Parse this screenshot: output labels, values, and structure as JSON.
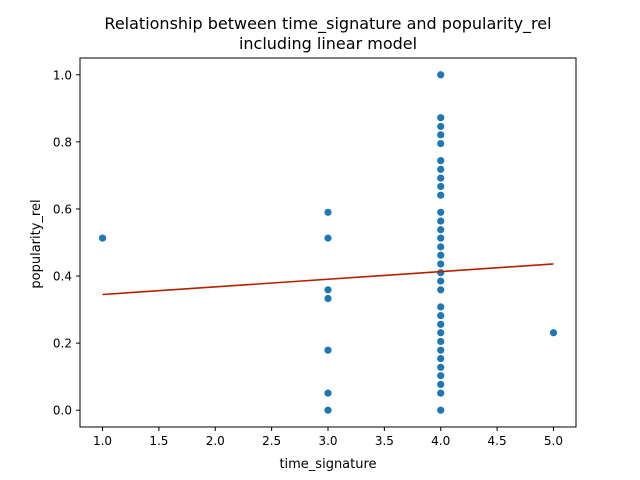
{
  "chart_data": {
    "type": "scatter",
    "title": "Relationship between time_signature and popularity_rel\nincluding linear model",
    "xlabel": "time_signature",
    "ylabel": "popularity_rel",
    "xlim": [
      0.8,
      5.2
    ],
    "ylim": [
      -0.05,
      1.05
    ],
    "xticks": [
      "1.0",
      "1.5",
      "2.0",
      "2.5",
      "3.0",
      "3.5",
      "4.0",
      "4.5",
      "5.0"
    ],
    "yticks": [
      "0.0",
      "0.2",
      "0.4",
      "0.6",
      "0.8",
      "1.0"
    ],
    "grid": false,
    "colors": {
      "points": "#1f77b4",
      "line": "#b22200"
    },
    "series": [
      {
        "type": "scatter",
        "points": [
          {
            "x": 1.0,
            "y": 0.513
          },
          {
            "x": 3.0,
            "y": 0.59
          },
          {
            "x": 3.0,
            "y": 0.513
          },
          {
            "x": 3.0,
            "y": 0.359
          },
          {
            "x": 3.0,
            "y": 0.333
          },
          {
            "x": 3.0,
            "y": 0.179
          },
          {
            "x": 3.0,
            "y": 0.051
          },
          {
            "x": 3.0,
            "y": 0.0
          },
          {
            "x": 4.0,
            "y": 1.0
          },
          {
            "x": 4.0,
            "y": 0.872
          },
          {
            "x": 4.0,
            "y": 0.846
          },
          {
            "x": 4.0,
            "y": 0.821
          },
          {
            "x": 4.0,
            "y": 0.795
          },
          {
            "x": 4.0,
            "y": 0.744
          },
          {
            "x": 4.0,
            "y": 0.718
          },
          {
            "x": 4.0,
            "y": 0.692
          },
          {
            "x": 4.0,
            "y": 0.667
          },
          {
            "x": 4.0,
            "y": 0.641
          },
          {
            "x": 4.0,
            "y": 0.59
          },
          {
            "x": 4.0,
            "y": 0.564
          },
          {
            "x": 4.0,
            "y": 0.538
          },
          {
            "x": 4.0,
            "y": 0.513
          },
          {
            "x": 4.0,
            "y": 0.487
          },
          {
            "x": 4.0,
            "y": 0.462
          },
          {
            "x": 4.0,
            "y": 0.436
          },
          {
            "x": 4.0,
            "y": 0.41
          },
          {
            "x": 4.0,
            "y": 0.385
          },
          {
            "x": 4.0,
            "y": 0.359
          },
          {
            "x": 4.0,
            "y": 0.308
          },
          {
            "x": 4.0,
            "y": 0.282
          },
          {
            "x": 4.0,
            "y": 0.256
          },
          {
            "x": 4.0,
            "y": 0.231
          },
          {
            "x": 4.0,
            "y": 0.205
          },
          {
            "x": 4.0,
            "y": 0.179
          },
          {
            "x": 4.0,
            "y": 0.154
          },
          {
            "x": 4.0,
            "y": 0.128
          },
          {
            "x": 4.0,
            "y": 0.103
          },
          {
            "x": 4.0,
            "y": 0.077
          },
          {
            "x": 4.0,
            "y": 0.051
          },
          {
            "x": 4.0,
            "y": 0.0
          },
          {
            "x": 5.0,
            "y": 0.231
          }
        ]
      },
      {
        "type": "line",
        "x": [
          1.0,
          5.0
        ],
        "y": [
          0.345,
          0.436
        ]
      }
    ]
  }
}
